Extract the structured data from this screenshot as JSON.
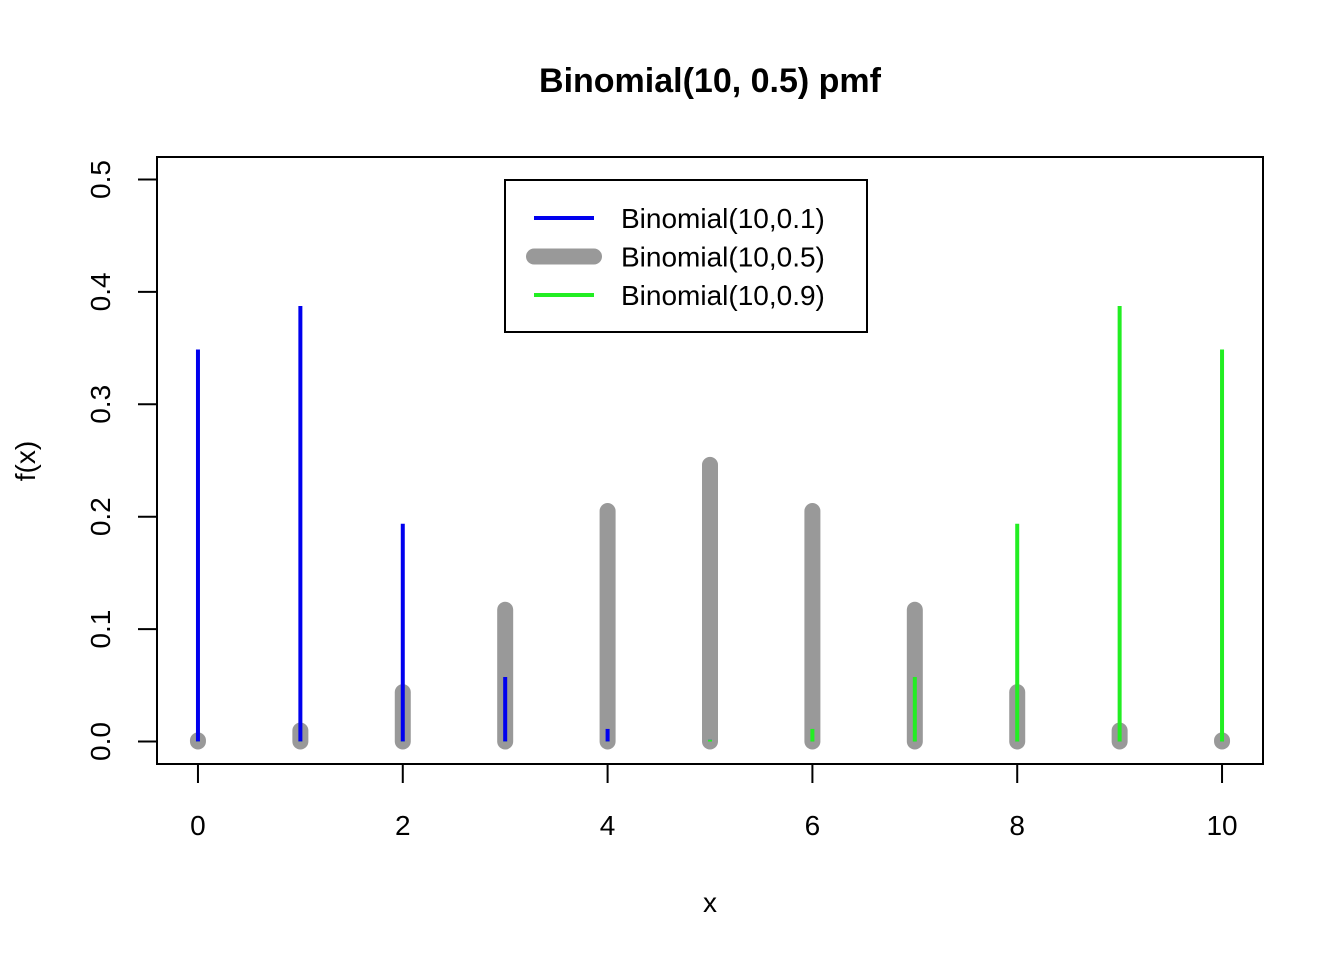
{
  "chart_data": {
    "type": "bar",
    "title": "Binomial(10, 0.5) pmf",
    "xlabel": "x",
    "ylabel": "f(x)",
    "xlim": [
      -0.4,
      10.4
    ],
    "ylim": [
      -0.02,
      0.52
    ],
    "x_ticks": [
      0,
      2,
      4,
      6,
      8,
      10
    ],
    "x_tick_labels": [
      "0",
      "2",
      "4",
      "6",
      "8",
      "10"
    ],
    "y_ticks": [
      0.0,
      0.1,
      0.2,
      0.3,
      0.4,
      0.5
    ],
    "y_tick_labels": [
      "0.0",
      "0.1",
      "0.2",
      "0.3",
      "0.4",
      "0.5"
    ],
    "x": [
      0,
      1,
      2,
      3,
      4,
      5,
      6,
      7,
      8,
      9,
      10
    ],
    "legend_position": "top-center",
    "series": [
      {
        "name": "Binomial(10,0.5)",
        "color": "#999999",
        "style": "thick",
        "values": [
          0.001,
          0.0098,
          0.0439,
          0.1172,
          0.2051,
          0.2461,
          0.2051,
          0.1172,
          0.0439,
          0.0098,
          0.001
        ]
      },
      {
        "name": "Binomial(10,0.1)",
        "color": "#0000ee",
        "style": "thin",
        "values": [
          0.3487,
          0.3874,
          0.1937,
          0.0574,
          0.0112,
          0.0015,
          0.0001,
          0.0,
          0.0,
          0.0,
          0.0
        ]
      },
      {
        "name": "Binomial(10,0.9)",
        "color": "#22ee22",
        "style": "thin",
        "values": [
          0.0,
          0.0,
          0.0,
          0.0,
          0.0001,
          0.0015,
          0.0112,
          0.0574,
          0.1937,
          0.3874,
          0.3487
        ]
      }
    ],
    "legend": [
      {
        "label": "Binomial(10,0.1)",
        "color": "#0000ee",
        "style": "thin"
      },
      {
        "label": "Binomial(10,0.5)",
        "color": "#999999",
        "style": "thick"
      },
      {
        "label": "Binomial(10,0.9)",
        "color": "#22ee22",
        "style": "thin"
      }
    ]
  }
}
